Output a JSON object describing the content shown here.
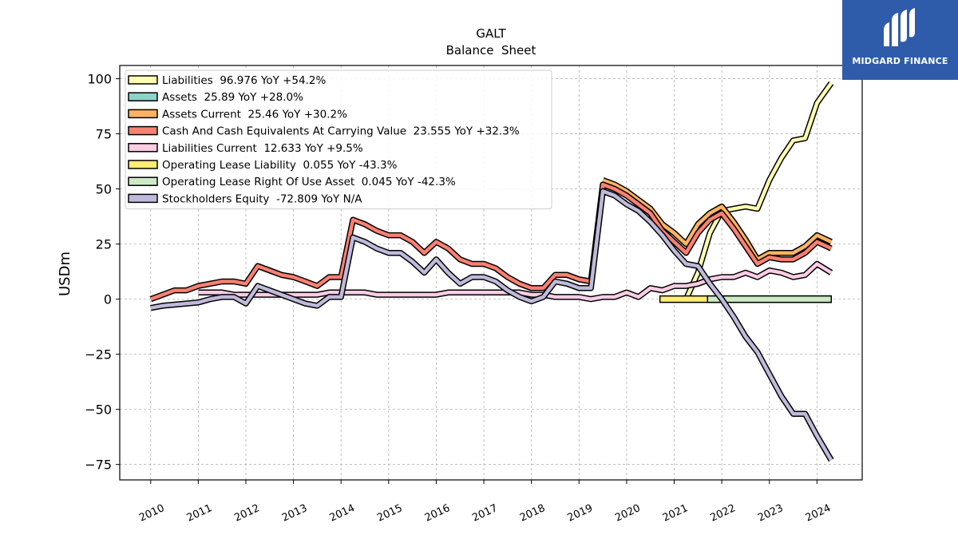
{
  "chart_data": {
    "type": "line",
    "title": "GALT",
    "subtitle": "Balance  Sheet",
    "ylabel": "USDm",
    "xlabel": "",
    "ylim": [
      -82,
      106
    ],
    "xlim": [
      2009.35,
      2024.95
    ],
    "yticks": [
      100,
      75,
      50,
      25,
      0,
      -25,
      -50,
      -75
    ],
    "xticks": [
      "2010",
      "2011",
      "2012",
      "2013",
      "2014",
      "2015",
      "2016",
      "2017",
      "2018",
      "2019",
      "2020",
      "2021",
      "2022",
      "2023",
      "2024"
    ],
    "grid": true,
    "legend_position": "top-left",
    "series": [
      {
        "name": "Liabilities  96.976 YoY +54.2%",
        "color": "#ffffb3",
        "points": [
          [
            2021.25,
            0
          ],
          [
            2021.5,
            12
          ],
          [
            2021.75,
            30
          ],
          [
            2022.0,
            40
          ],
          [
            2022.25,
            41
          ],
          [
            2022.5,
            42
          ],
          [
            2022.75,
            41
          ],
          [
            2023.0,
            54
          ],
          [
            2023.25,
            64
          ],
          [
            2023.5,
            72
          ],
          [
            2023.75,
            73
          ],
          [
            2024.0,
            89
          ],
          [
            2024.3,
            98
          ]
        ]
      },
      {
        "name": "Assets  25.89 YoY +28.0%",
        "color": "#8dd3c7",
        "points": [
          [
            2021.5,
            34
          ],
          [
            2021.75,
            39
          ],
          [
            2022.0,
            42
          ],
          [
            2022.25,
            35
          ],
          [
            2022.5,
            27
          ],
          [
            2022.75,
            18
          ],
          [
            2023.0,
            21
          ],
          [
            2023.25,
            21
          ],
          [
            2023.5,
            21
          ],
          [
            2023.75,
            24
          ],
          [
            2024.0,
            29
          ],
          [
            2024.3,
            26
          ]
        ]
      },
      {
        "name": "Assets Current  25.46 YoY +30.2%",
        "color": "#fdb462",
        "points": [
          [
            2019.5,
            54
          ],
          [
            2019.75,
            52
          ],
          [
            2020.0,
            49
          ],
          [
            2020.25,
            45
          ],
          [
            2020.5,
            41
          ],
          [
            2020.75,
            34
          ],
          [
            2021.0,
            30
          ],
          [
            2021.25,
            25
          ],
          [
            2021.5,
            34
          ],
          [
            2021.75,
            39
          ],
          [
            2022.0,
            42
          ],
          [
            2022.25,
            35
          ],
          [
            2022.5,
            27
          ],
          [
            2022.75,
            18
          ],
          [
            2023.0,
            21
          ],
          [
            2023.25,
            21
          ],
          [
            2023.5,
            21
          ],
          [
            2023.75,
            24
          ],
          [
            2024.0,
            29
          ],
          [
            2024.3,
            26
          ]
        ]
      },
      {
        "name": "Cash And Cash Equivalents At Carrying Value  23.555 YoY +32.3%",
        "color": "#fb8072",
        "points": [
          [
            2010.0,
            0
          ],
          [
            2010.25,
            2
          ],
          [
            2010.5,
            4
          ],
          [
            2010.75,
            4
          ],
          [
            2011.0,
            6
          ],
          [
            2011.25,
            7
          ],
          [
            2011.5,
            8
          ],
          [
            2011.75,
            8
          ],
          [
            2012.0,
            7
          ],
          [
            2012.25,
            15
          ],
          [
            2012.5,
            13
          ],
          [
            2012.75,
            11
          ],
          [
            2013.0,
            10
          ],
          [
            2013.25,
            8
          ],
          [
            2013.5,
            6
          ],
          [
            2013.75,
            10
          ],
          [
            2014.0,
            10
          ],
          [
            2014.25,
            36
          ],
          [
            2014.5,
            34
          ],
          [
            2014.75,
            31
          ],
          [
            2015.0,
            29
          ],
          [
            2015.25,
            29
          ],
          [
            2015.5,
            26
          ],
          [
            2015.75,
            21
          ],
          [
            2016.0,
            26
          ],
          [
            2016.25,
            23
          ],
          [
            2016.5,
            18
          ],
          [
            2016.75,
            16
          ],
          [
            2017.0,
            16
          ],
          [
            2017.25,
            14
          ],
          [
            2017.5,
            10
          ],
          [
            2017.75,
            7
          ],
          [
            2018.0,
            5
          ],
          [
            2018.25,
            5
          ],
          [
            2018.5,
            11
          ],
          [
            2018.75,
            11
          ],
          [
            2019.0,
            9
          ],
          [
            2019.25,
            8
          ],
          [
            2019.5,
            52
          ],
          [
            2019.75,
            50
          ],
          [
            2020.0,
            47
          ],
          [
            2020.25,
            43
          ],
          [
            2020.5,
            39
          ],
          [
            2020.75,
            31
          ],
          [
            2021.0,
            26
          ],
          [
            2021.25,
            21
          ],
          [
            2021.5,
            30
          ],
          [
            2021.75,
            36
          ],
          [
            2022.0,
            39
          ],
          [
            2022.25,
            32
          ],
          [
            2022.5,
            24
          ],
          [
            2022.75,
            16
          ],
          [
            2023.0,
            19
          ],
          [
            2023.25,
            18
          ],
          [
            2023.5,
            18
          ],
          [
            2023.75,
            21
          ],
          [
            2024.0,
            26
          ],
          [
            2024.3,
            23
          ]
        ]
      },
      {
        "name": "Liabilities Current  12.633 YoY +9.5%",
        "color": "#fccde5",
        "points": [
          [
            2011.0,
            3
          ],
          [
            2011.25,
            3
          ],
          [
            2011.5,
            3
          ],
          [
            2011.75,
            2
          ],
          [
            2012.0,
            2
          ],
          [
            2012.25,
            2
          ],
          [
            2012.5,
            2
          ],
          [
            2012.75,
            2
          ],
          [
            2013.0,
            2
          ],
          [
            2013.25,
            2
          ],
          [
            2013.5,
            2
          ],
          [
            2013.75,
            3
          ],
          [
            2014.0,
            3
          ],
          [
            2014.25,
            3
          ],
          [
            2014.5,
            3
          ],
          [
            2014.75,
            2
          ],
          [
            2015.0,
            2
          ],
          [
            2015.25,
            2
          ],
          [
            2015.5,
            2
          ],
          [
            2015.75,
            2
          ],
          [
            2016.0,
            2
          ],
          [
            2016.25,
            3
          ],
          [
            2016.5,
            3
          ],
          [
            2016.75,
            3
          ],
          [
            2017.0,
            3
          ],
          [
            2017.25,
            3
          ],
          [
            2017.5,
            3
          ],
          [
            2017.75,
            3
          ],
          [
            2018.0,
            2
          ],
          [
            2018.25,
            2
          ],
          [
            2018.5,
            1
          ],
          [
            2018.75,
            1
          ],
          [
            2019.0,
            1
          ],
          [
            2019.25,
            0
          ],
          [
            2019.5,
            1
          ],
          [
            2019.75,
            1
          ],
          [
            2020.0,
            3
          ],
          [
            2020.25,
            1
          ],
          [
            2020.5,
            5
          ],
          [
            2020.75,
            4
          ],
          [
            2021.0,
            6
          ],
          [
            2021.25,
            6
          ],
          [
            2021.5,
            7
          ],
          [
            2021.75,
            9
          ],
          [
            2022.0,
            10
          ],
          [
            2022.25,
            10
          ],
          [
            2022.5,
            12
          ],
          [
            2022.75,
            10
          ],
          [
            2023.0,
            13
          ],
          [
            2023.25,
            12
          ],
          [
            2023.5,
            10
          ],
          [
            2023.75,
            11
          ],
          [
            2024.0,
            16
          ],
          [
            2024.3,
            12
          ]
        ]
      },
      {
        "name": "Operating Lease Liability  0.055 YoY -43.3%",
        "color": "#ffed6f",
        "points": [
          [
            2020.7,
            0.1
          ],
          [
            2021.0,
            0.1
          ],
          [
            2021.5,
            0.1
          ],
          [
            2022.0,
            0.1
          ],
          [
            2022.5,
            0.1
          ],
          [
            2023.0,
            0.1
          ],
          [
            2023.5,
            0.1
          ],
          [
            2024.0,
            0.1
          ],
          [
            2024.3,
            0.05
          ]
        ]
      },
      {
        "name": "Operating Lease Right Of Use Asset  0.045 YoY -42.3%",
        "color": "#ccebc5",
        "points": [
          [
            2021.7,
            0.1
          ],
          [
            2022.0,
            0.1
          ],
          [
            2022.5,
            0.1
          ],
          [
            2023.0,
            0.1
          ],
          [
            2023.5,
            0.1
          ],
          [
            2024.0,
            0.1
          ],
          [
            2024.3,
            0.05
          ]
        ]
      },
      {
        "name": "Stockholders Equity  -72.809 YoY N/A",
        "color": "#bebada",
        "points": [
          [
            2010.0,
            -4
          ],
          [
            2010.25,
            -3
          ],
          [
            2010.5,
            -2.5
          ],
          [
            2010.75,
            -2
          ],
          [
            2011.0,
            -1.5
          ],
          [
            2011.25,
            0
          ],
          [
            2011.5,
            1
          ],
          [
            2011.75,
            1
          ],
          [
            2012.0,
            -2
          ],
          [
            2012.25,
            6
          ],
          [
            2012.5,
            4
          ],
          [
            2012.75,
            2
          ],
          [
            2013.0,
            0
          ],
          [
            2013.25,
            -2
          ],
          [
            2013.5,
            -3
          ],
          [
            2013.75,
            1
          ],
          [
            2014.0,
            1
          ],
          [
            2014.25,
            28
          ],
          [
            2014.5,
            26
          ],
          [
            2014.75,
            23
          ],
          [
            2015.0,
            21
          ],
          [
            2015.25,
            21
          ],
          [
            2015.5,
            17
          ],
          [
            2015.75,
            12
          ],
          [
            2016.0,
            18
          ],
          [
            2016.25,
            12
          ],
          [
            2016.5,
            7
          ],
          [
            2016.75,
            10
          ],
          [
            2017.0,
            10
          ],
          [
            2017.25,
            8
          ],
          [
            2017.5,
            4
          ],
          [
            2017.75,
            1
          ],
          [
            2018.0,
            -1
          ],
          [
            2018.25,
            1
          ],
          [
            2018.5,
            8
          ],
          [
            2018.75,
            7
          ],
          [
            2019.0,
            5
          ],
          [
            2019.25,
            5
          ],
          [
            2019.5,
            49
          ],
          [
            2019.75,
            47
          ],
          [
            2020.0,
            43
          ],
          [
            2020.25,
            40
          ],
          [
            2020.5,
            35
          ],
          [
            2020.75,
            29
          ],
          [
            2021.0,
            22
          ],
          [
            2021.25,
            16
          ],
          [
            2021.5,
            15
          ],
          [
            2021.75,
            7
          ],
          [
            2022.0,
            0
          ],
          [
            2022.25,
            -8
          ],
          [
            2022.5,
            -17
          ],
          [
            2022.75,
            -24
          ],
          [
            2023.0,
            -34
          ],
          [
            2023.25,
            -44
          ],
          [
            2023.5,
            -52
          ],
          [
            2023.75,
            -52
          ],
          [
            2024.0,
            -62
          ],
          [
            2024.3,
            -73
          ]
        ]
      }
    ]
  },
  "logo": {
    "text": "MIDGARD FINANCE",
    "background": "#2e5cab"
  }
}
